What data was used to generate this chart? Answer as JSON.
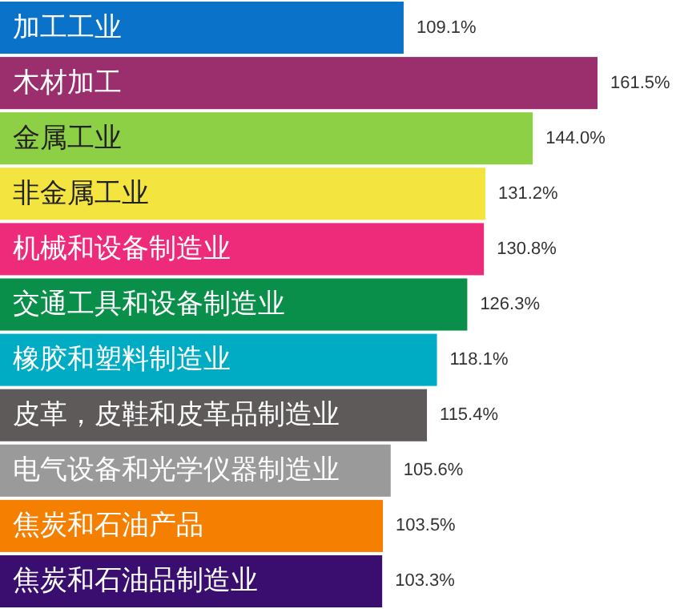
{
  "chart_data": {
    "type": "bar",
    "orientation": "horizontal",
    "data_labels": true,
    "categories": [
      "加工工业",
      "木材加工",
      "金属工业",
      "非金属工业",
      "机械和设备制造业",
      "交通工具和设备制造业",
      "橡胶和塑料制造业",
      "皮革，皮鞋和皮革品制造业",
      "电气设备和光学仪器制造业",
      "焦炭和石油产品",
      "焦炭和石油品制造业"
    ],
    "values": [
      109.1,
      161.5,
      144.0,
      131.2,
      130.8,
      126.3,
      118.1,
      115.4,
      105.6,
      103.5,
      103.3
    ],
    "value_labels": [
      "109.1%",
      "161.5%",
      "144.0%",
      "131.2%",
      "130.8%",
      "126.3%",
      "118.1%",
      "115.4%",
      "105.6%",
      "103.5%",
      "103.3%"
    ],
    "colors": [
      "#0a72c8",
      "#9b2f6e",
      "#8dcf45",
      "#f3e43f",
      "#ee2a7b",
      "#0a8f4a",
      "#00acc3",
      "#5e5a5a",
      "#9a9a9a",
      "#f47f00",
      "#3a0e6e"
    ]
  }
}
